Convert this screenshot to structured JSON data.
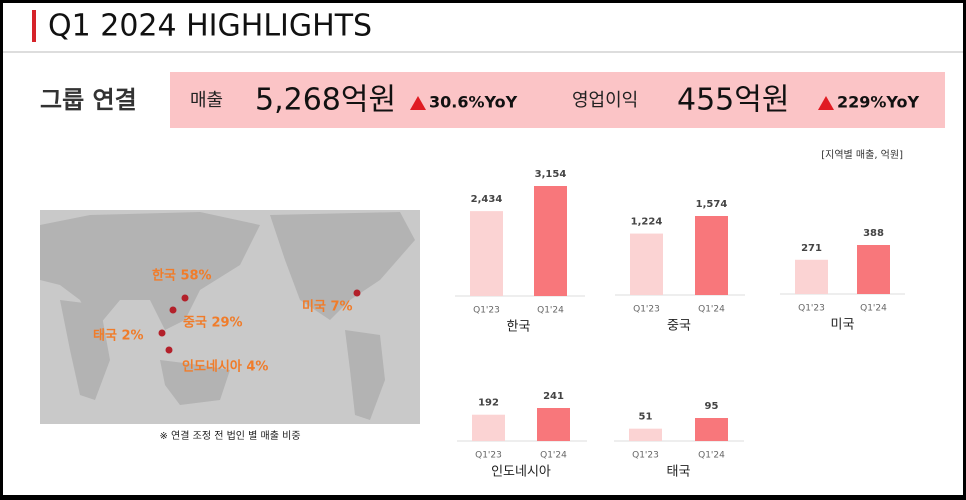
{
  "header": {
    "title": "Q1 2024 HIGHLIGHTS"
  },
  "summary": {
    "group": "그룹 연결",
    "sales_label": "매출",
    "sales_value": "5,268억원",
    "sales_growth": "30.6%YoY",
    "op_label": "영업이익",
    "op_value": "455억원",
    "op_growth": "229%YoY"
  },
  "unit_note": "[지역별 매출, 억원]",
  "map": {
    "labels": [
      "한국 58%",
      "중국 29%",
      "태국 2%",
      "인도네시아 4%",
      "미국 7%"
    ],
    "caption": "※ 연결 조정 전 법인 별 매출 비중"
  },
  "chart_data": [
    {
      "type": "bar",
      "title": "한국",
      "categories": [
        "Q1'23",
        "Q1'24"
      ],
      "values": [
        2434,
        3154
      ],
      "value_labels": [
        "2,434",
        "3,154"
      ],
      "colors": [
        "#fbd3d3",
        "#f8777b"
      ]
    },
    {
      "type": "bar",
      "title": "중국",
      "categories": [
        "Q1'23",
        "Q1'24"
      ],
      "values": [
        1224,
        1574
      ],
      "value_labels": [
        "1,224",
        "1,574"
      ],
      "colors": [
        "#fbd3d3",
        "#f8777b"
      ]
    },
    {
      "type": "bar",
      "title": "미국",
      "categories": [
        "Q1'23",
        "Q1'24"
      ],
      "values": [
        271,
        388
      ],
      "colors": [
        "#fbd3d3",
        "#f8777b"
      ]
    },
    {
      "type": "bar",
      "title": "인도네시아",
      "categories": [
        "Q1'23",
        "Q1'24"
      ],
      "values": [
        192,
        241
      ],
      "colors": [
        "#fbd3d3",
        "#f8777b"
      ]
    },
    {
      "type": "bar",
      "title": "태국",
      "categories": [
        "Q1'23",
        "Q1'24"
      ],
      "values": [
        51,
        95
      ],
      "colors": [
        "#fbd3d3",
        "#f8777b"
      ]
    }
  ]
}
